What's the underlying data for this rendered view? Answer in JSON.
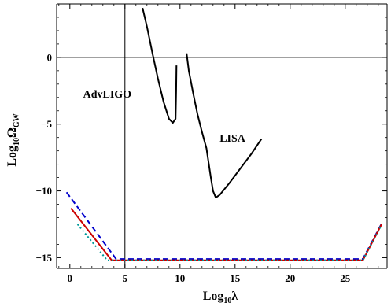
{
  "chart_data": {
    "type": "line",
    "title": "",
    "xlabel": {
      "base": "Log",
      "sub": "10",
      "var": "λ"
    },
    "ylabel": {
      "base": "Log",
      "sub": "10",
      "var": "Ω",
      "var_sub": "GW"
    },
    "xlim": [
      -1.2,
      28.8
    ],
    "ylim": [
      -15.8,
      4.0
    ],
    "x_ticks": [
      0,
      5,
      10,
      15,
      20,
      25
    ],
    "y_ticks": [
      0,
      -5,
      -10,
      -15
    ],
    "reference_lines": {
      "vertical_x": 5,
      "horizontal_y": 0
    },
    "grid": false,
    "legend": "none",
    "annotations": [
      {
        "text": "AdvLIGO",
        "x": 1.2,
        "y": -3.0
      },
      {
        "text": "LISA",
        "x": 13.6,
        "y": -6.3
      }
    ],
    "series": [
      {
        "color": "#000000",
        "dash": "solid",
        "points": [
          [
            6.6,
            3.7
          ],
          [
            7.0,
            2.3
          ],
          [
            7.5,
            0.3
          ],
          [
            8.0,
            -1.6
          ],
          [
            8.5,
            -3.3
          ],
          [
            9.0,
            -4.6
          ],
          [
            9.35,
            -4.9
          ],
          [
            9.6,
            -4.6
          ],
          [
            9.65,
            -2.5
          ],
          [
            9.68,
            -0.6
          ]
        ]
      },
      {
        "color": "#000000",
        "dash": "solid",
        "points": [
          [
            10.6,
            0.3
          ],
          [
            10.8,
            -1.0
          ],
          [
            11.2,
            -2.7
          ],
          [
            11.6,
            -4.3
          ],
          [
            12.0,
            -5.6
          ],
          [
            12.4,
            -6.8
          ],
          [
            12.6,
            -7.9
          ],
          [
            12.8,
            -9.0
          ],
          [
            13.0,
            -10.0
          ],
          [
            13.25,
            -10.5
          ],
          [
            13.6,
            -10.3
          ],
          [
            14.5,
            -9.4
          ],
          [
            15.5,
            -8.3
          ],
          [
            16.5,
            -7.2
          ],
          [
            17.4,
            -6.1
          ]
        ]
      },
      {
        "color": "#0000cc",
        "dash": "7,4",
        "points": [
          [
            -0.3,
            -10.1
          ],
          [
            4.2,
            -15.1
          ],
          [
            26.6,
            -15.1
          ],
          [
            28.4,
            -12.3
          ]
        ]
      },
      {
        "color": "#cc0000",
        "dash": "solid",
        "points": [
          [
            0.1,
            -11.3
          ],
          [
            3.8,
            -15.2
          ],
          [
            26.6,
            -15.2
          ],
          [
            28.3,
            -12.5
          ]
        ]
      },
      {
        "color": "#009999",
        "dash": "2,3",
        "points": [
          [
            0.7,
            -12.5
          ],
          [
            3.4,
            -15.2
          ],
          [
            26.6,
            -15.2
          ],
          [
            28.2,
            -12.7
          ]
        ]
      }
    ]
  }
}
